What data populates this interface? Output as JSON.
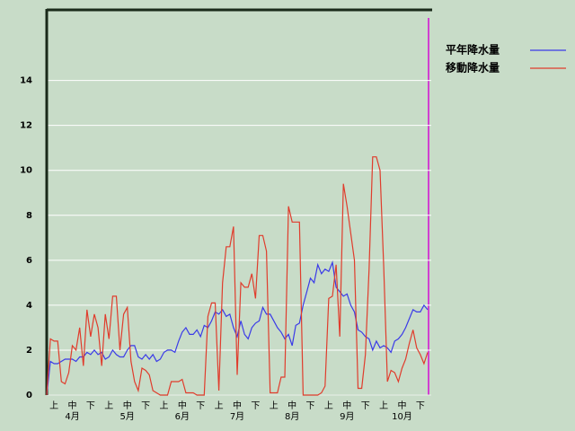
{
  "chart_data": {
    "type": "line",
    "categories": [
      null,
      null,
      "上",
      null,
      null,
      null,
      null,
      "中",
      null,
      null,
      null,
      null,
      "下",
      null,
      null,
      null,
      null,
      "上",
      null,
      null,
      null,
      null,
      "中",
      null,
      null,
      null,
      null,
      "下",
      null,
      null,
      null,
      null,
      "上",
      null,
      null,
      null,
      null,
      "中",
      null,
      null,
      null,
      null,
      "下",
      null,
      null,
      null,
      null,
      "上",
      null,
      null,
      null,
      null,
      "中",
      null,
      null,
      null,
      null,
      "下",
      null,
      null,
      null,
      null,
      "上",
      null,
      null,
      null,
      null,
      "中",
      null,
      null,
      null,
      null,
      "下",
      null,
      null,
      null,
      null,
      "上",
      null,
      null,
      null,
      null,
      "中",
      null,
      null,
      null,
      null,
      "下",
      null,
      null,
      null,
      null,
      "上",
      null,
      null,
      null,
      null,
      "中",
      null,
      null,
      null,
      null,
      "下",
      null,
      null
    ],
    "months": [
      "4月",
      "5月",
      "6月",
      "7月",
      "8月",
      "9月",
      "10月"
    ],
    "series": [
      {
        "name": "平年降水量",
        "color": "#3a3ae8",
        "values": [
          0,
          1.5,
          1.4,
          1.4,
          1.5,
          1.6,
          1.6,
          1.6,
          1.5,
          1.7,
          1.7,
          1.9,
          1.8,
          2.0,
          1.8,
          1.9,
          1.6,
          1.7,
          2.0,
          1.8,
          1.7,
          1.7,
          2.0,
          2.2,
          2.2,
          1.7,
          1.6,
          1.8,
          1.6,
          1.8,
          1.5,
          1.6,
          1.9,
          2.0,
          2.0,
          1.9,
          2.4,
          2.8,
          3.0,
          2.7,
          2.7,
          2.9,
          2.6,
          3.1,
          3.0,
          3.3,
          3.7,
          3.6,
          3.8,
          3.5,
          3.6,
          3.0,
          2.6,
          3.3,
          2.7,
          2.5,
          3.0,
          3.2,
          3.3,
          3.9,
          3.6,
          3.6,
          3.3,
          3.0,
          2.8,
          2.5,
          2.7,
          2.2,
          3.1,
          3.2,
          4.0,
          4.6,
          5.2,
          5.0,
          5.8,
          5.4,
          5.6,
          5.5,
          5.9,
          4.8,
          4.6,
          4.4,
          4.5,
          4.0,
          3.7,
          2.9,
          2.8,
          2.6,
          2.5,
          2.0,
          2.4,
          2.1,
          2.2,
          2.1,
          1.9,
          2.4,
          2.5,
          2.7,
          3.0,
          3.4,
          3.8,
          3.7,
          3.7,
          4.0,
          3.8
        ]
      },
      {
        "name": "移動降水量",
        "color": "#e03c2c",
        "values": [
          0,
          2.5,
          2.4,
          2.4,
          0.6,
          0.5,
          1.0,
          2.2,
          2.0,
          3.0,
          1.3,
          3.8,
          2.6,
          3.6,
          3.0,
          1.3,
          3.6,
          2.5,
          4.4,
          4.4,
          2.0,
          3.6,
          3.9,
          1.5,
          0.6,
          0.2,
          1.2,
          1.1,
          0.9,
          0.2,
          0.1,
          0,
          0,
          0,
          0.6,
          0.6,
          0.6,
          0.7,
          0.1,
          0.1,
          0.1,
          0,
          0,
          0,
          3.5,
          4.1,
          4.1,
          0.2,
          5.0,
          6.6,
          6.6,
          7.5,
          0.9,
          5.0,
          4.8,
          4.8,
          5.4,
          4.3,
          7.1,
          7.1,
          6.4,
          0.1,
          0.1,
          0.1,
          0.8,
          0.8,
          8.4,
          7.7,
          7.7,
          7.7,
          0,
          0,
          0,
          0,
          0,
          0.1,
          0.4,
          4.3,
          4.4,
          5.8,
          2.6,
          9.4,
          8.4,
          7.2,
          6.0,
          0.3,
          0.3,
          1.8,
          5.6,
          10.6,
          10.6,
          10.0,
          5.7,
          0.6,
          1.1,
          1.0,
          0.6,
          1.2,
          1.6,
          2.3,
          2.9,
          2.1,
          1.8,
          1.4,
          1.9
        ]
      }
    ],
    "ylim": [
      0,
      17.1
    ],
    "yticks": [
      0,
      2,
      4,
      6,
      8,
      10,
      12,
      14
    ],
    "grid": true,
    "legend": "top-right"
  }
}
